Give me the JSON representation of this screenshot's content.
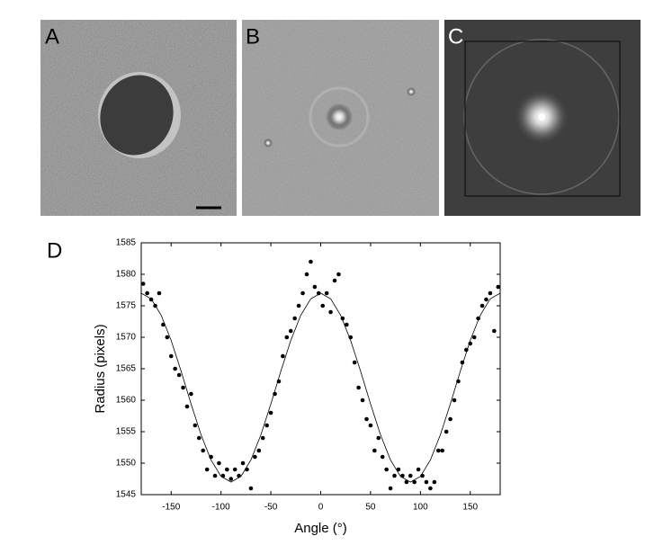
{
  "panels": [
    {
      "label": "A"
    },
    {
      "label": "B"
    },
    {
      "label": "C"
    }
  ],
  "chart_data": {
    "type": "scatter",
    "label": "D",
    "xlabel": "Angle (°)",
    "ylabel": "Radius (pixels)",
    "xlim": [
      -180,
      180
    ],
    "ylim": [
      1545,
      1585
    ],
    "xticks": [
      -150,
      -100,
      -50,
      0,
      50,
      100,
      150
    ],
    "yticks": [
      1545,
      1550,
      1555,
      1560,
      1565,
      1570,
      1575,
      1580,
      1585
    ],
    "series": [
      {
        "type": "scatter",
        "color": "#000000",
        "x": [
          -178,
          -174,
          -170,
          -166,
          -162,
          -158,
          -154,
          -150,
          -146,
          -142,
          -138,
          -134,
          -130,
          -126,
          -122,
          -118,
          -114,
          -110,
          -106,
          -102,
          -98,
          -94,
          -90,
          -86,
          -82,
          -78,
          -74,
          -70,
          -66,
          -62,
          -58,
          -54,
          -50,
          -46,
          -42,
          -38,
          -34,
          -30,
          -26,
          -22,
          -18,
          -14,
          -10,
          -6,
          -2,
          2,
          6,
          10,
          14,
          18,
          22,
          26,
          30,
          34,
          38,
          42,
          46,
          50,
          54,
          58,
          62,
          66,
          70,
          74,
          78,
          82,
          86,
          90,
          94,
          98,
          102,
          106,
          110,
          114,
          118,
          122,
          126,
          130,
          134,
          138,
          142,
          146,
          150,
          154,
          158,
          162,
          166,
          170,
          174,
          178
        ],
        "values": [
          1578.5,
          1577,
          1576,
          1575,
          1577,
          1572,
          1570,
          1567,
          1565,
          1564,
          1562,
          1559,
          1561,
          1556,
          1554,
          1552,
          1549,
          1551,
          1548,
          1550,
          1548,
          1549,
          1547.5,
          1549,
          1548,
          1550,
          1549,
          1546,
          1551,
          1552,
          1554,
          1556,
          1558,
          1561,
          1563,
          1567,
          1570,
          1571,
          1573,
          1575,
          1577,
          1580,
          1582,
          1578,
          1577,
          1575,
          1577,
          1574,
          1579,
          1580,
          1573,
          1572,
          1570,
          1566,
          1562,
          1560,
          1557,
          1556,
          1552,
          1554,
          1551,
          1549,
          1546,
          1548,
          1549,
          1548,
          1547,
          1548,
          1547,
          1549,
          1548,
          1547,
          1546,
          1547,
          1552,
          1552,
          1555,
          1557,
          1560,
          1563,
          1566,
          1568,
          1569,
          1570,
          1573,
          1575,
          1576,
          1577,
          1571,
          1578
        ]
      },
      {
        "type": "line",
        "color": "#000000",
        "x": [
          -180,
          -170,
          -160,
          -150,
          -140,
          -130,
          -120,
          -110,
          -100,
          -90,
          -80,
          -70,
          -60,
          -50,
          -40,
          -30,
          -20,
          -10,
          0,
          10,
          20,
          30,
          40,
          50,
          60,
          70,
          80,
          90,
          100,
          110,
          120,
          130,
          140,
          150,
          160,
          170,
          180
        ],
        "values": [
          1577,
          1576.1,
          1573.5,
          1569.5,
          1564.6,
          1559.4,
          1554.5,
          1550.5,
          1547.9,
          1547,
          1547.9,
          1550.5,
          1554.5,
          1559.4,
          1564.6,
          1569.5,
          1573.5,
          1576.1,
          1577,
          1576.1,
          1573.5,
          1569.5,
          1564.6,
          1559.4,
          1554.5,
          1550.5,
          1547.9,
          1547,
          1547.9,
          1550.5,
          1554.5,
          1559.4,
          1564.6,
          1569.5,
          1573.5,
          1576.1,
          1577
        ]
      }
    ]
  }
}
